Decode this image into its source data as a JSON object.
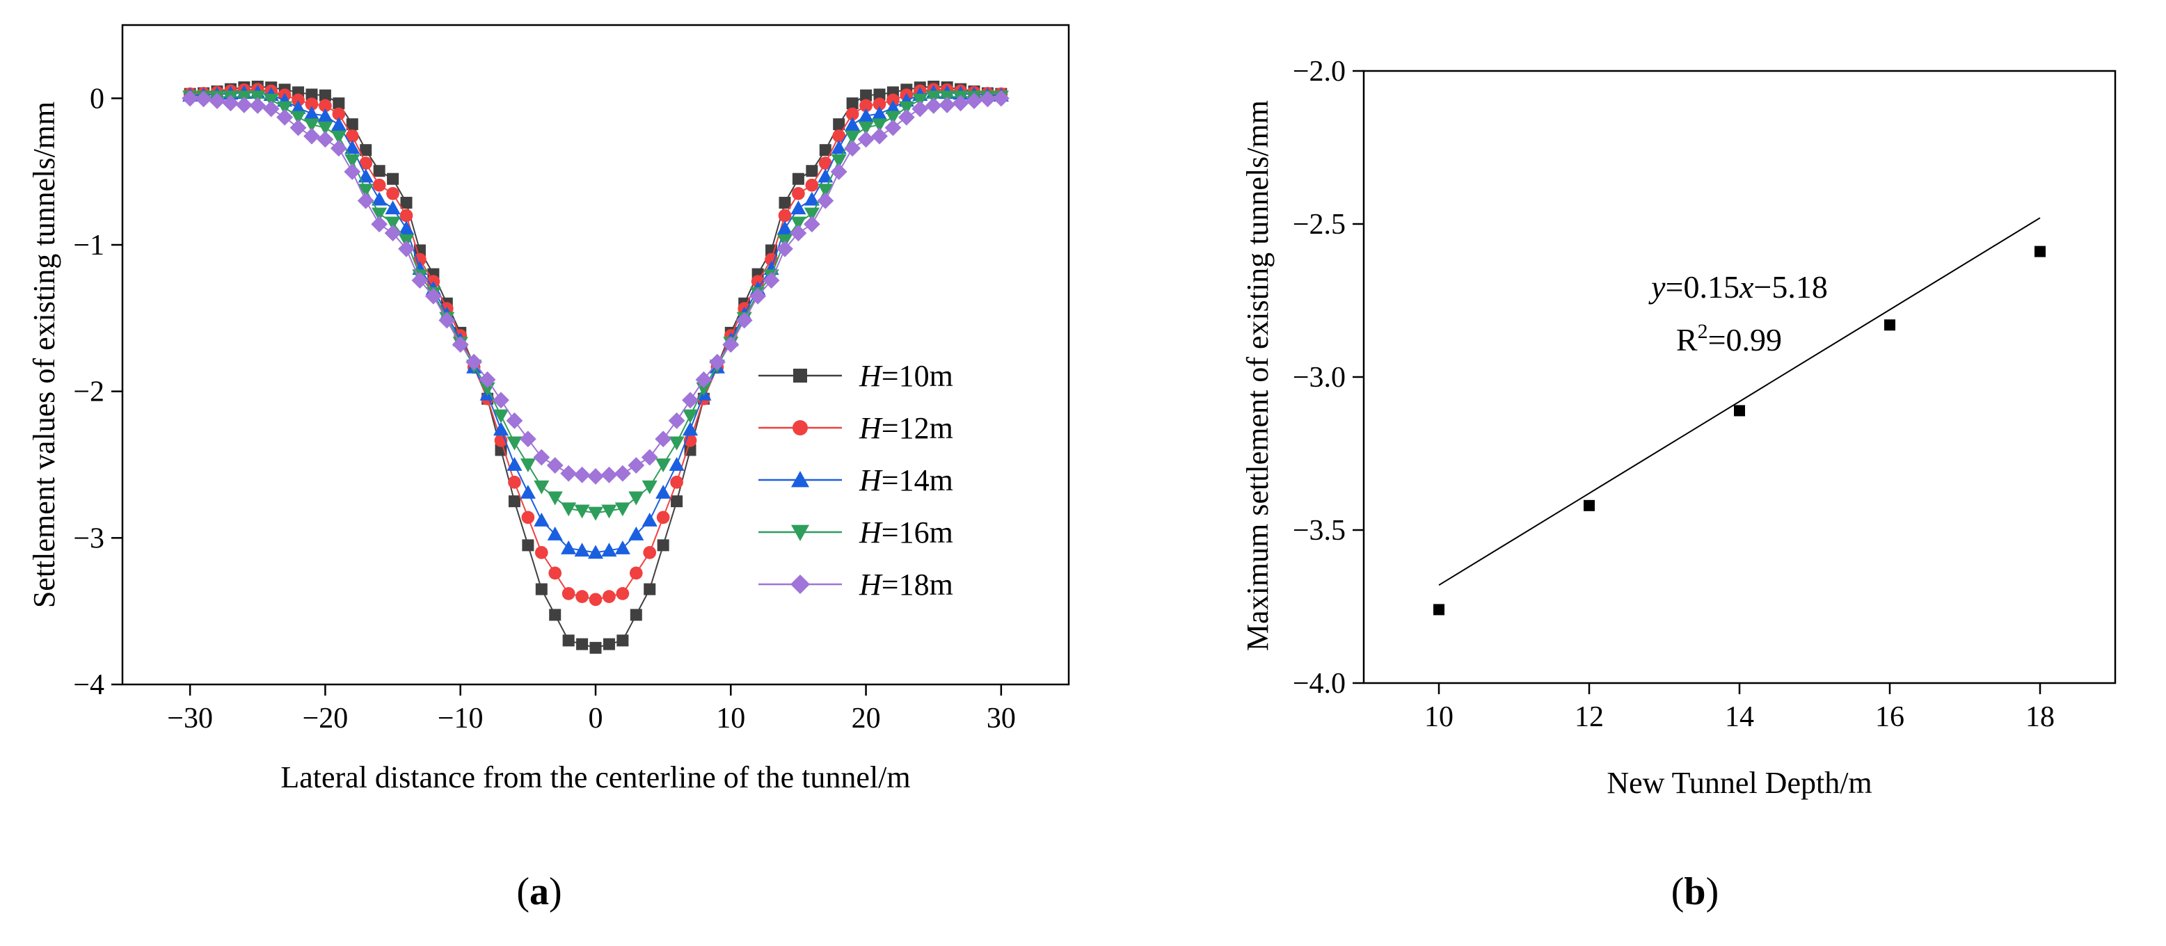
{
  "chart_data": [
    {
      "type": "line",
      "panel_label": "(a)",
      "panel_letter": "a",
      "xlabel": "Lateral distance from the centerline of the tunnel/m",
      "ylabel": "Settlement values of existing tunnels/mm",
      "xlim": [
        -35,
        35
      ],
      "ylim": [
        -4,
        0.5
      ],
      "xticks": [
        -30,
        -20,
        -10,
        0,
        10,
        20,
        30
      ],
      "yticks": [
        0,
        -1,
        -2,
        -3,
        -4
      ],
      "xtick_labels": [
        "−30",
        "−20",
        "−10",
        "0",
        "10",
        "20",
        "30"
      ],
      "ytick_labels": [
        "0",
        "−1",
        "−2",
        "−3",
        "−4"
      ],
      "legend_position": "center-right",
      "x": [
        -30,
        -25,
        -20,
        -15,
        -12,
        -10,
        -8,
        -6,
        -4,
        -2,
        0,
        2,
        4,
        6,
        8,
        10,
        12,
        15,
        20,
        25,
        30
      ],
      "series": [
        {
          "name": "H=10m",
          "var": "H",
          "suffix": "=10m",
          "color": "#404040",
          "marker": "square",
          "values": [
            0.03,
            0.08,
            0.02,
            -0.55,
            -1.2,
            -1.6,
            -2.05,
            -2.75,
            -3.35,
            -3.7,
            -3.75,
            -3.7,
            -3.35,
            -2.75,
            -2.05,
            -1.6,
            -1.2,
            -0.55,
            0.02,
            0.08,
            0.03
          ]
        },
        {
          "name": "H=12m",
          "var": "H",
          "suffix": "=12m",
          "color": "#f04040",
          "marker": "circle",
          "values": [
            0.03,
            0.06,
            -0.05,
            -0.65,
            -1.25,
            -1.62,
            -2.05,
            -2.62,
            -3.1,
            -3.38,
            -3.42,
            -3.38,
            -3.1,
            -2.62,
            -2.05,
            -1.62,
            -1.25,
            -0.65,
            -0.05,
            0.06,
            0.03
          ]
        },
        {
          "name": "H=14m",
          "var": "H",
          "suffix": "=14m",
          "color": "#1a5fe0",
          "marker": "triangle-up",
          "values": [
            0.02,
            0.04,
            -0.12,
            -0.75,
            -1.3,
            -1.65,
            -2.02,
            -2.5,
            -2.88,
            -3.07,
            -3.1,
            -3.07,
            -2.88,
            -2.5,
            -2.02,
            -1.65,
            -1.3,
            -0.75,
            -0.12,
            0.04,
            0.02
          ]
        },
        {
          "name": "H=16m",
          "var": "H",
          "suffix": "=16m",
          "color": "#2e9e5b",
          "marker": "triangle-down",
          "values": [
            0.01,
            0.01,
            -0.2,
            -0.85,
            -1.33,
            -1.67,
            -1.98,
            -2.35,
            -2.65,
            -2.8,
            -2.83,
            -2.8,
            -2.65,
            -2.35,
            -1.98,
            -1.67,
            -1.33,
            -0.85,
            -0.2,
            0.01,
            0.01
          ]
        },
        {
          "name": "H=18m",
          "var": "H",
          "suffix": "=18m",
          "color": "#a074d8",
          "marker": "diamond",
          "values": [
            0.0,
            -0.05,
            -0.28,
            -0.92,
            -1.35,
            -1.68,
            -1.92,
            -2.2,
            -2.45,
            -2.56,
            -2.58,
            -2.56,
            -2.45,
            -2.2,
            -1.92,
            -1.68,
            -1.35,
            -0.92,
            -0.28,
            -0.05,
            0.0
          ]
        }
      ]
    },
    {
      "type": "scatter",
      "panel_label": "(b)",
      "panel_letter": "b",
      "xlabel": "New Tunnel Depth/m",
      "ylabel": "Maximum settlement of existing tunnels/mm",
      "xlim": [
        9,
        19
      ],
      "ylim": [
        -4.0,
        -2.0
      ],
      "xticks": [
        10,
        12,
        14,
        16,
        18
      ],
      "yticks": [
        -2.0,
        -2.5,
        -3.0,
        -3.5,
        -4.0
      ],
      "xtick_labels": [
        "10",
        "12",
        "14",
        "16",
        "18"
      ],
      "ytick_labels": [
        "−2.0",
        "−2.5",
        "−3.0",
        "−3.5",
        "−4.0"
      ],
      "x": [
        10,
        12,
        14,
        16,
        18
      ],
      "y": [
        -3.76,
        -3.42,
        -3.11,
        -2.83,
        -2.59
      ],
      "fit": {
        "slope": 0.15,
        "intercept": -5.18
      },
      "annotation": {
        "eq_y": "y",
        "eq_mid": "=0.15",
        "eq_x": "x",
        "eq_tail": "−5.18",
        "r2_prefix": "R",
        "r2_sup": "2",
        "r2_tail": "=0.99"
      }
    }
  ]
}
